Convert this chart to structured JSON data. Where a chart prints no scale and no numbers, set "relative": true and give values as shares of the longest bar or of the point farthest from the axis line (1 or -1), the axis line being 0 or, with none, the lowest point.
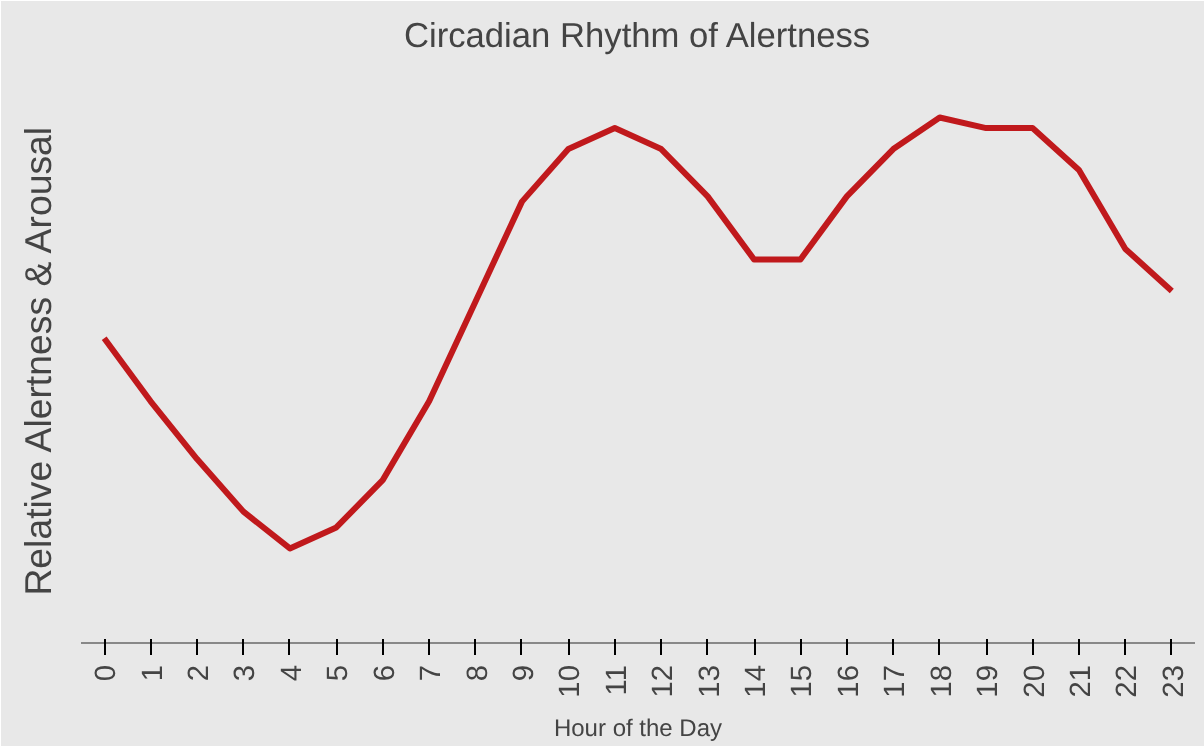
{
  "chart_data": {
    "type": "line",
    "title": "Circadian Rhythm of Alertness",
    "xlabel": "Hour of the Day",
    "ylabel": "Relative  Alertness & Arousal",
    "relative": true,
    "marker": "none",
    "line_style": "solid",
    "categories": [
      "0",
      "1",
      "2",
      "3",
      "4",
      "5",
      "6",
      "7",
      "8",
      "9",
      "10",
      "11",
      "12",
      "13",
      "14",
      "15",
      "16",
      "17",
      "18",
      "19",
      "20",
      "21",
      "22",
      "23"
    ],
    "series": [
      {
        "color": "#c0191c",
        "values": [
          0.58,
          0.46,
          0.35,
          0.25,
          0.18,
          0.22,
          0.31,
          0.46,
          0.65,
          0.84,
          0.94,
          0.98,
          0.94,
          0.85,
          0.73,
          0.73,
          0.85,
          0.94,
          1.0,
          0.98,
          0.98,
          0.9,
          0.75,
          0.67
        ]
      }
    ]
  }
}
